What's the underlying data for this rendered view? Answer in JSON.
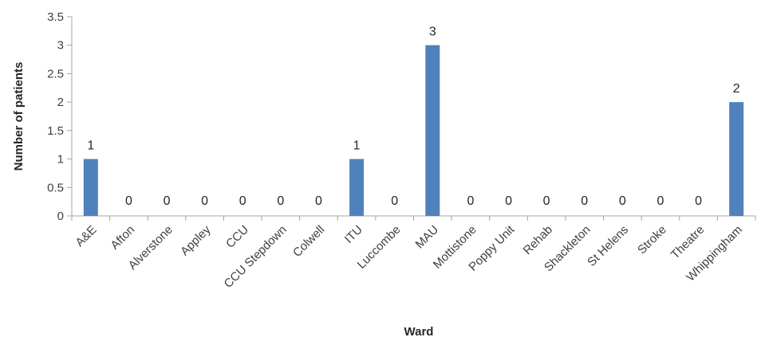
{
  "chart_data": {
    "type": "bar",
    "categories": [
      "A&E",
      "Afton",
      "Alverstone",
      "Appley",
      "CCU",
      "CCU Stepdown",
      "Colwell",
      "ITU",
      "Luccombe",
      "MAU",
      "Mottistone",
      "Poppy Unit",
      "Rehab",
      "Shackleton",
      "St Helens",
      "Stroke",
      "Theatre",
      "Whippingham"
    ],
    "values": [
      1,
      0,
      0,
      0,
      0,
      0,
      0,
      1,
      0,
      3,
      0,
      0,
      0,
      0,
      0,
      0,
      0,
      2
    ],
    "data_labels": [
      "1",
      "0",
      "0",
      "0",
      "0",
      "0",
      "0",
      "1",
      "0",
      "3",
      "0",
      "0",
      "0",
      "0",
      "0",
      "0",
      "0",
      "2"
    ],
    "y_ticks": [
      "0",
      "0.5",
      "1",
      "1.5",
      "2",
      "2.5",
      "3",
      "3.5"
    ],
    "xlabel": "Ward",
    "ylabel": "Number of patients",
    "ylim": [
      0,
      3.5
    ],
    "grid": false,
    "legend": "none",
    "bar_color": "#4F81BD",
    "axis_color": "#A6A6A6"
  }
}
